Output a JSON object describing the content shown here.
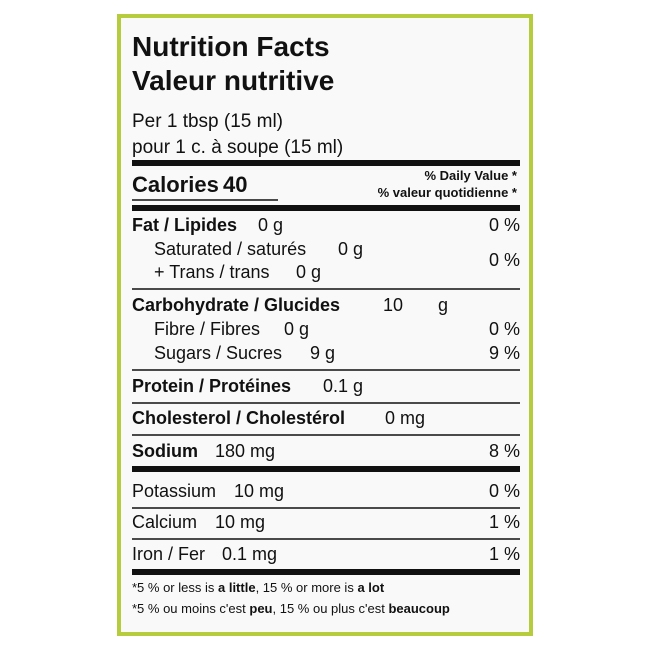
{
  "label": {
    "title": "Nutrition Facts",
    "title_fr": "Valeur nutritive",
    "serving": "Per 1 tbsp (15 ml)",
    "serving_fr": "pour 1 c. à soupe (15 ml)",
    "calories": {
      "name": "Calories",
      "amount": "40"
    },
    "dv_header": "% Daily Value *",
    "dv_header_fr": "% valeur quotidienne *",
    "fat": {
      "name": "Fat / Lipides",
      "amount": "0 g",
      "dv": "0 %"
    },
    "saturated": {
      "name": "Saturated / saturés",
      "amount": "0 g"
    },
    "trans": {
      "name": "+ Trans / trans",
      "amount": "0 g"
    },
    "saturated_trans_dv": "0 %",
    "carbohydrate": {
      "name": "Carbohydrate / Glucides",
      "amount": "10",
      "unit": "g"
    },
    "fibre": {
      "name": "Fibre / Fibres",
      "amount": "0 g",
      "dv": "0 %"
    },
    "sugars": {
      "name": "Sugars / Sucres",
      "amount": "9 g",
      "dv": "9 %"
    },
    "protein": {
      "name": "Protein / Protéines",
      "amount": "0.1 g"
    },
    "cholesterol": {
      "name": "Cholesterol / Cholestérol",
      "amount": "0 mg"
    },
    "sodium": {
      "name": "Sodium",
      "amount": "180 mg",
      "dv": "8 %"
    },
    "potassium": {
      "name": "Potassium",
      "amount": "10 mg",
      "dv": "0 %"
    },
    "calcium": {
      "name": "Calcium",
      "amount": "10 mg",
      "dv": "1 %"
    },
    "iron": {
      "name": "Iron / Fer",
      "amount": "0.1 mg",
      "dv": "1 %"
    },
    "footnote": [
      "*5 % or less is ",
      "a little",
      ", 15 % or more is ",
      "a lot"
    ],
    "footnote_fr": [
      "*5 % ou moins c'est ",
      "peu",
      ", 15 % ou plus c'est ",
      "beaucoup"
    ]
  }
}
